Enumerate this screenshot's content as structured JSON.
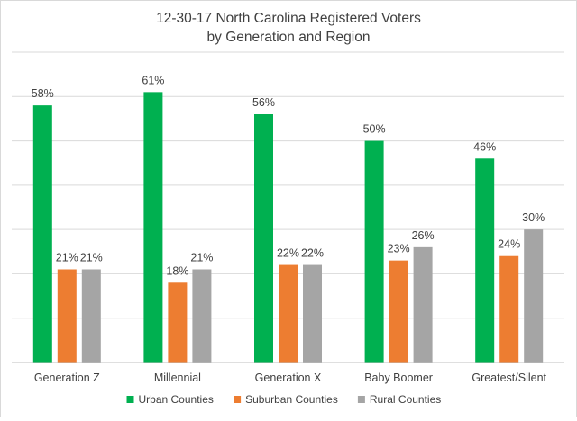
{
  "chart_data": {
    "type": "bar",
    "title_line1": "12-30-17 North Carolina Registered Voters",
    "title_line2": "by Generation and Region",
    "categories": [
      "Generation Z",
      "Millennial",
      "Generation X",
      "Baby Boomer",
      "Greatest/Silent"
    ],
    "series": [
      {
        "name": "Urban Counties",
        "color": "#00b050",
        "values": [
          58,
          61,
          56,
          50,
          46
        ],
        "labels": [
          "58%",
          "61%",
          "56%",
          "50%",
          "46%"
        ]
      },
      {
        "name": "Suburban Counties",
        "color": "#ed7d31",
        "values": [
          21,
          18,
          22,
          23,
          24
        ],
        "labels": [
          "21%",
          "18%",
          "22%",
          "23%",
          "24%"
        ]
      },
      {
        "name": "Rural Counties",
        "color": "#a5a5a5",
        "values": [
          21,
          21,
          22,
          26,
          30
        ],
        "labels": [
          "21%",
          "21%",
          "22%",
          "26%",
          "30%"
        ]
      }
    ],
    "ylim": [
      0,
      70
    ],
    "yticks": [
      0,
      10,
      20,
      30,
      40,
      50,
      60,
      70
    ],
    "grid": true,
    "legend": "bottom-center",
    "gridline_color": "#d9d9d9",
    "axis_color": "#bfbfbf",
    "text_color": "#404040"
  }
}
